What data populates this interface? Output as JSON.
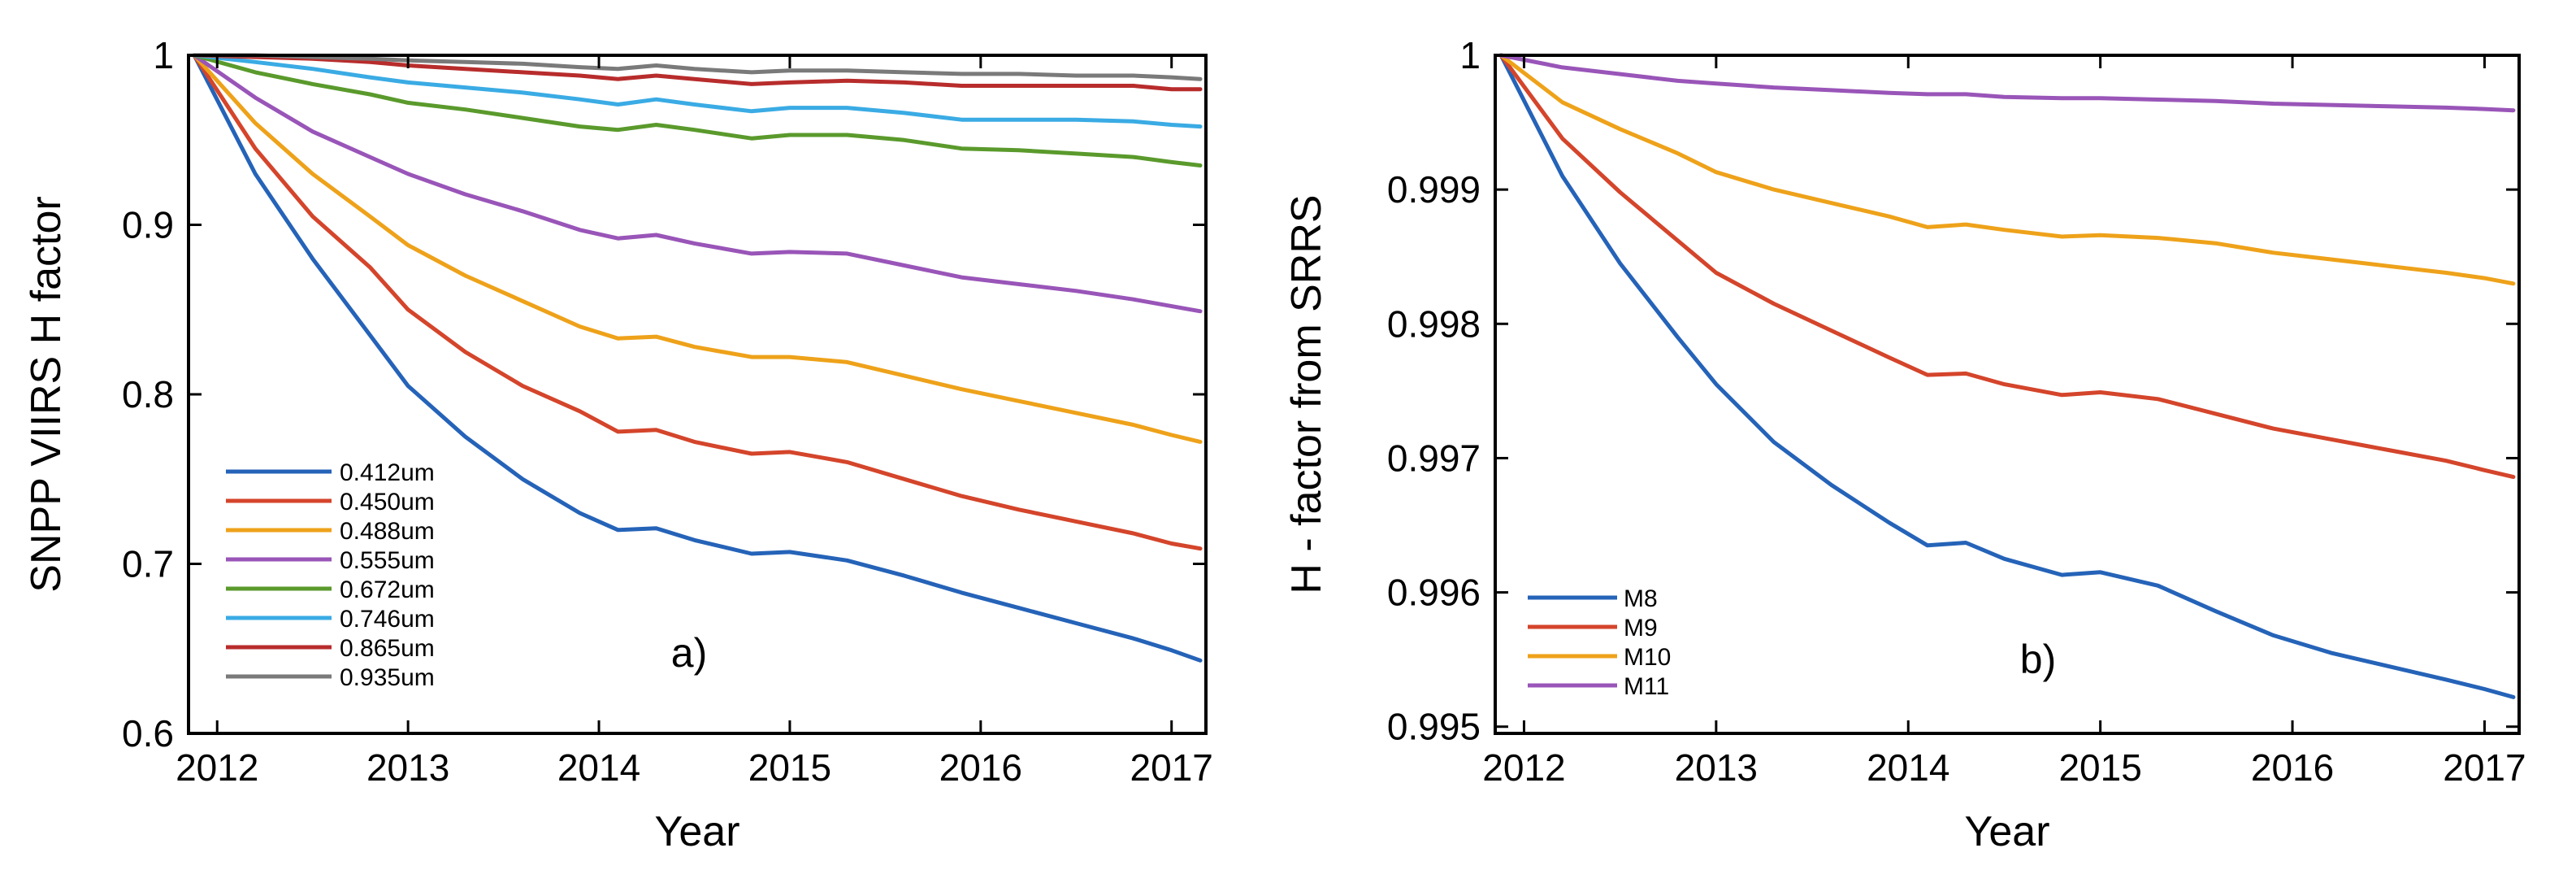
{
  "chart_data": [
    {
      "type": "line",
      "panel_label": "a)",
      "xlabel": "Year",
      "ylabel": "SNPP VIIRS H factor",
      "xlim": [
        2011.85,
        2017.18
      ],
      "ylim": [
        0.6,
        1.0
      ],
      "xticks": [
        2012,
        2013,
        2014,
        2015,
        2016,
        2017
      ],
      "xtick_labels": [
        "2012",
        "2013",
        "2014",
        "2015",
        "2016",
        "2017"
      ],
      "yticks": [
        0.6,
        0.7,
        0.8,
        0.9,
        1.0
      ],
      "ytick_labels": [
        "0.6",
        "0.7",
        "0.8",
        "0.9",
        "1"
      ],
      "legend_position": "bottom-left",
      "series": [
        {
          "name": "0.412um",
          "color": "#2563b8",
          "x": [
            2011.88,
            2012.2,
            2012.5,
            2012.8,
            2013.0,
            2013.3,
            2013.6,
            2013.9,
            2014.1,
            2014.3,
            2014.5,
            2014.8,
            2015.0,
            2015.3,
            2015.6,
            2015.9,
            2016.2,
            2016.5,
            2016.8,
            2017.0,
            2017.15
          ],
          "y": [
            1.0,
            0.93,
            0.88,
            0.835,
            0.805,
            0.775,
            0.75,
            0.73,
            0.72,
            0.721,
            0.714,
            0.706,
            0.707,
            0.702,
            0.693,
            0.683,
            0.674,
            0.665,
            0.656,
            0.649,
            0.643
          ]
        },
        {
          "name": "0.450um",
          "color": "#d4452b",
          "x": [
            2011.88,
            2012.2,
            2012.5,
            2012.8,
            2013.0,
            2013.3,
            2013.6,
            2013.9,
            2014.1,
            2014.3,
            2014.5,
            2014.8,
            2015.0,
            2015.3,
            2015.6,
            2015.9,
            2016.2,
            2016.5,
            2016.8,
            2017.0,
            2017.15
          ],
          "y": [
            1.0,
            0.945,
            0.905,
            0.875,
            0.85,
            0.825,
            0.805,
            0.79,
            0.778,
            0.779,
            0.772,
            0.765,
            0.766,
            0.76,
            0.75,
            0.74,
            0.732,
            0.725,
            0.718,
            0.712,
            0.709
          ]
        },
        {
          "name": "0.488um",
          "color": "#eea21a",
          "x": [
            2011.88,
            2012.2,
            2012.5,
            2012.8,
            2013.0,
            2013.3,
            2013.6,
            2013.9,
            2014.1,
            2014.3,
            2014.5,
            2014.8,
            2015.0,
            2015.3,
            2015.6,
            2015.9,
            2016.2,
            2016.5,
            2016.8,
            2017.0,
            2017.15
          ],
          "y": [
            1.0,
            0.96,
            0.93,
            0.905,
            0.888,
            0.87,
            0.855,
            0.84,
            0.833,
            0.834,
            0.828,
            0.822,
            0.822,
            0.819,
            0.811,
            0.803,
            0.796,
            0.789,
            0.782,
            0.776,
            0.772
          ]
        },
        {
          "name": "0.555um",
          "color": "#9955b8",
          "x": [
            2011.88,
            2012.2,
            2012.5,
            2012.8,
            2013.0,
            2013.3,
            2013.6,
            2013.9,
            2014.1,
            2014.3,
            2014.5,
            2014.8,
            2015.0,
            2015.3,
            2015.6,
            2015.9,
            2016.2,
            2016.5,
            2016.8,
            2017.0,
            2017.15
          ],
          "y": [
            1.0,
            0.975,
            0.955,
            0.94,
            0.93,
            0.918,
            0.908,
            0.897,
            0.892,
            0.894,
            0.889,
            0.883,
            0.884,
            0.883,
            0.876,
            0.869,
            0.865,
            0.861,
            0.856,
            0.852,
            0.849
          ]
        },
        {
          "name": "0.672um",
          "color": "#5a9a2c",
          "x": [
            2011.88,
            2012.2,
            2012.5,
            2012.8,
            2013.0,
            2013.3,
            2013.6,
            2013.9,
            2014.1,
            2014.3,
            2014.5,
            2014.8,
            2015.0,
            2015.3,
            2015.6,
            2015.9,
            2016.2,
            2016.5,
            2016.8,
            2017.0,
            2017.15
          ],
          "y": [
            1.0,
            0.99,
            0.983,
            0.977,
            0.972,
            0.968,
            0.963,
            0.958,
            0.956,
            0.959,
            0.956,
            0.951,
            0.953,
            0.953,
            0.95,
            0.945,
            0.944,
            0.942,
            0.94,
            0.937,
            0.935
          ]
        },
        {
          "name": "0.746um",
          "color": "#3aabe4",
          "x": [
            2011.88,
            2012.2,
            2012.5,
            2012.8,
            2013.0,
            2013.3,
            2013.6,
            2013.9,
            2014.1,
            2014.3,
            2014.5,
            2014.8,
            2015.0,
            2015.3,
            2015.6,
            2015.9,
            2016.2,
            2016.5,
            2016.8,
            2017.0,
            2017.15
          ],
          "y": [
            1.0,
            0.996,
            0.992,
            0.987,
            0.984,
            0.981,
            0.978,
            0.974,
            0.971,
            0.974,
            0.971,
            0.967,
            0.969,
            0.969,
            0.966,
            0.962,
            0.962,
            0.962,
            0.961,
            0.959,
            0.958
          ]
        },
        {
          "name": "0.865um",
          "color": "#b82c2c",
          "x": [
            2011.88,
            2012.2,
            2012.5,
            2012.8,
            2013.0,
            2013.3,
            2013.6,
            2013.9,
            2014.1,
            2014.3,
            2014.5,
            2014.8,
            2015.0,
            2015.3,
            2015.6,
            2015.9,
            2016.2,
            2016.5,
            2016.8,
            2017.0,
            2017.15
          ],
          "y": [
            1.0,
            0.999,
            0.998,
            0.996,
            0.994,
            0.992,
            0.99,
            0.988,
            0.986,
            0.988,
            0.986,
            0.983,
            0.984,
            0.985,
            0.984,
            0.982,
            0.982,
            0.982,
            0.982,
            0.98,
            0.98
          ]
        },
        {
          "name": "0.935um",
          "color": "#7a7a7a",
          "x": [
            2011.88,
            2012.2,
            2012.5,
            2012.8,
            2013.0,
            2013.3,
            2013.6,
            2013.9,
            2014.1,
            2014.3,
            2014.5,
            2014.8,
            2015.0,
            2015.3,
            2015.6,
            2015.9,
            2016.2,
            2016.5,
            2016.8,
            2017.0,
            2017.15
          ],
          "y": [
            1.0,
            1.0,
            0.999,
            0.998,
            0.997,
            0.996,
            0.995,
            0.993,
            0.992,
            0.994,
            0.992,
            0.99,
            0.991,
            0.991,
            0.99,
            0.989,
            0.989,
            0.988,
            0.988,
            0.987,
            0.986
          ]
        }
      ]
    },
    {
      "type": "line",
      "panel_label": "b)",
      "xlabel": "Year",
      "ylabel": "H - factor from SRRS",
      "xlim": [
        2011.85,
        2017.18
      ],
      "ylim": [
        0.99495,
        1.0
      ],
      "xticks": [
        2012,
        2013,
        2014,
        2015,
        2016,
        2017
      ],
      "xtick_labels": [
        "2012",
        "2013",
        "2014",
        "2015",
        "2016",
        "2017"
      ],
      "yticks": [
        0.995,
        0.996,
        0.997,
        0.998,
        0.999,
        1.0
      ],
      "ytick_labels": [
        "0.995",
        "0.996",
        "0.997",
        "0.998",
        "0.999",
        "1"
      ],
      "legend_position": "bottom-left",
      "series": [
        {
          "name": "M8",
          "color": "#2563b8",
          "x": [
            2011.88,
            2012.2,
            2012.5,
            2012.8,
            2013.0,
            2013.3,
            2013.6,
            2013.9,
            2014.1,
            2014.3,
            2014.5,
            2014.8,
            2015.0,
            2015.3,
            2015.6,
            2015.9,
            2016.2,
            2016.5,
            2016.8,
            2017.0,
            2017.15
          ],
          "y": [
            1.0,
            0.9991,
            0.99845,
            0.9979,
            0.99755,
            0.99712,
            0.9968,
            0.99652,
            0.99635,
            0.99637,
            0.99625,
            0.99613,
            0.99615,
            0.99605,
            0.99586,
            0.99568,
            0.99555,
            0.99545,
            0.99535,
            0.99528,
            0.99522
          ]
        },
        {
          "name": "M9",
          "color": "#d4452b",
          "x": [
            2011.88,
            2012.2,
            2012.5,
            2012.8,
            2013.0,
            2013.3,
            2013.6,
            2013.9,
            2014.1,
            2014.3,
            2014.5,
            2014.8,
            2015.0,
            2015.3,
            2015.6,
            2015.9,
            2016.2,
            2016.5,
            2016.8,
            2017.0,
            2017.15
          ],
          "y": [
            1.0,
            0.99938,
            0.99898,
            0.99862,
            0.99838,
            0.99815,
            0.99795,
            0.99775,
            0.99762,
            0.99763,
            0.99755,
            0.99747,
            0.99749,
            0.99744,
            0.99733,
            0.99722,
            0.99714,
            0.99706,
            0.99698,
            0.99691,
            0.99686
          ]
        },
        {
          "name": "M10",
          "color": "#eea21a",
          "x": [
            2011.88,
            2012.2,
            2012.5,
            2012.8,
            2013.0,
            2013.3,
            2013.6,
            2013.9,
            2014.1,
            2014.3,
            2014.5,
            2014.8,
            2015.0,
            2015.3,
            2015.6,
            2015.9,
            2016.2,
            2016.5,
            2016.8,
            2017.0,
            2017.15
          ],
          "y": [
            1.0,
            0.99965,
            0.99945,
            0.99927,
            0.99913,
            0.999,
            0.9989,
            0.9988,
            0.99872,
            0.99874,
            0.9987,
            0.99865,
            0.99866,
            0.99864,
            0.9986,
            0.99853,
            0.99848,
            0.99843,
            0.99838,
            0.99834,
            0.9983
          ]
        },
        {
          "name": "M11",
          "color": "#9955b8",
          "x": [
            2011.88,
            2012.2,
            2012.5,
            2012.8,
            2013.0,
            2013.3,
            2013.6,
            2013.9,
            2014.1,
            2014.3,
            2014.5,
            2014.8,
            2015.0,
            2015.3,
            2015.6,
            2015.9,
            2016.2,
            2016.5,
            2016.8,
            2017.0,
            2017.15
          ],
          "y": [
            1.0,
            0.99991,
            0.99986,
            0.99981,
            0.99979,
            0.99976,
            0.99974,
            0.99972,
            0.99971,
            0.99971,
            0.99969,
            0.99968,
            0.99968,
            0.99967,
            0.99966,
            0.99964,
            0.99963,
            0.99962,
            0.99961,
            0.9996,
            0.99959
          ]
        }
      ]
    }
  ]
}
